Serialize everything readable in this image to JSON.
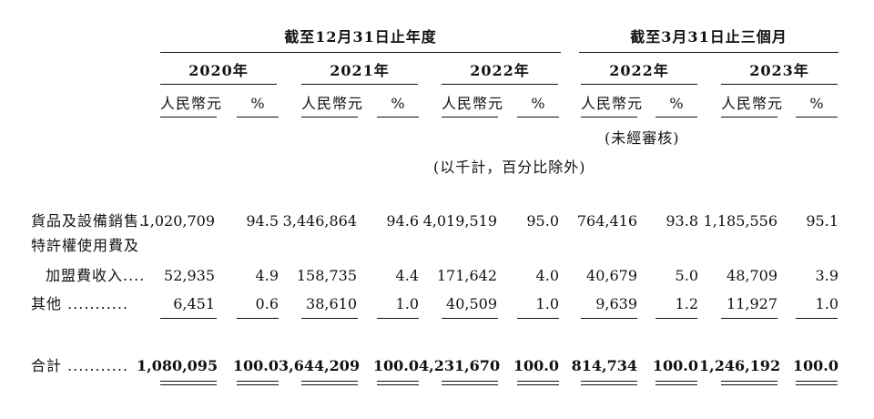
{
  "header": {
    "group_year": "截至12月31日止年度",
    "group_quarter": "截至3月31日止三個月",
    "periods": [
      "2020年",
      "2021年",
      "2022年",
      "2022年",
      "2023年"
    ],
    "currency": "人民幣元",
    "pct": "%",
    "unaudited": "(未經審核)",
    "unit_note": "(以千計，百分比除外)"
  },
  "rows": [
    {
      "label_lines": [
        "貨品及設備銷售.."
      ],
      "values": [
        "1,020,709",
        "94.5",
        "3,446,864",
        "94.6",
        "4,019,519",
        "95.0",
        "764,416",
        "93.8",
        "1,185,556",
        "95.1"
      ]
    },
    {
      "label_lines": [
        "特許權使用費及",
        "加盟費收入...."
      ],
      "values": [
        "52,935",
        "4.9",
        "158,735",
        "4.4",
        "171,642",
        "4.0",
        "40,679",
        "5.0",
        "48,709",
        "3.9"
      ]
    },
    {
      "label_lines": [
        "其他 ..........."
      ],
      "values": [
        "6,451",
        "0.6",
        "38,610",
        "1.0",
        "40,509",
        "1.0",
        "9,639",
        "1.2",
        "11,927",
        "1.0"
      ]
    }
  ],
  "total": {
    "label": "合計 ...........",
    "values": [
      "1,080,095",
      "100.0",
      "3,644,209",
      "100.0",
      "4,231,670",
      "100.0",
      "814,734",
      "100.0",
      "1,246,192",
      "100.0"
    ]
  }
}
